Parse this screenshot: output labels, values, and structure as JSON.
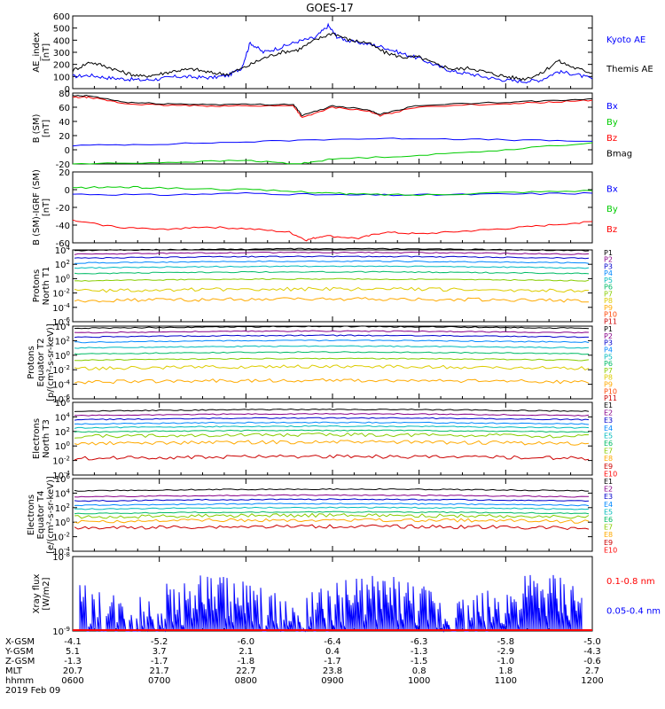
{
  "title": "GOES-17",
  "chart_data": [
    {
      "type": "line",
      "panel": "ae",
      "ylabel": [
        "AE_index",
        "[nT]"
      ],
      "ylim": [
        0,
        600
      ],
      "yticks": [
        "600",
        "500",
        "400",
        "300",
        "200",
        "100",
        "0"
      ],
      "series": [
        {
          "name": "Kyoto AE",
          "color": "#0000ff",
          "x": [
            6.0,
            6.2,
            6.4,
            6.6,
            6.8,
            7.0,
            7.2,
            7.4,
            7.6,
            7.8,
            7.95,
            8.05,
            8.2,
            8.4,
            8.6,
            8.8,
            8.95,
            9.05,
            9.2,
            9.4,
            9.6,
            9.8,
            10.0,
            10.2,
            10.4,
            10.6,
            10.8,
            11.0,
            11.2,
            11.4,
            11.6,
            11.8,
            12.0
          ],
          "y": [
            100,
            110,
            90,
            80,
            70,
            80,
            100,
            95,
            90,
            110,
            170,
            380,
            300,
            340,
            390,
            420,
            520,
            430,
            390,
            370,
            340,
            290,
            250,
            190,
            140,
            120,
            90,
            70,
            60,
            70,
            140,
            120,
            80
          ]
        },
        {
          "name": "Themis AE",
          "color": "#000000",
          "x": [
            6.0,
            6.2,
            6.4,
            6.6,
            6.8,
            7.0,
            7.2,
            7.4,
            7.6,
            7.8,
            8.0,
            8.2,
            8.4,
            8.6,
            8.8,
            9.0,
            9.2,
            9.4,
            9.6,
            9.8,
            10.0,
            10.2,
            10.4,
            10.6,
            10.8,
            11.0,
            11.2,
            11.4,
            11.6,
            11.8,
            12.0
          ],
          "y": [
            150,
            220,
            180,
            130,
            100,
            120,
            150,
            160,
            130,
            120,
            180,
            250,
            300,
            320,
            400,
            460,
            400,
            380,
            300,
            260,
            260,
            200,
            160,
            170,
            130,
            100,
            80,
            120,
            230,
            170,
            130
          ]
        }
      ]
    },
    {
      "type": "line",
      "panel": "bsm",
      "ylabel": [
        "B (SM)",
        "[nT]"
      ],
      "ylim": [
        -20,
        80
      ],
      "yticks": [
        "80",
        "60",
        "40",
        "20",
        "0",
        "-20"
      ],
      "series": [
        {
          "name": "Bx",
          "color": "#0000ff",
          "x": [
            6,
            7,
            8,
            9,
            10,
            11,
            12
          ],
          "y": [
            6,
            8,
            11,
            15,
            16,
            14,
            12
          ]
        },
        {
          "name": "By",
          "color": "#00cc00",
          "x": [
            6,
            7,
            8,
            8.6,
            9,
            10,
            11,
            12
          ],
          "y": [
            -20,
            -18,
            -15,
            -20,
            -13,
            -8,
            0,
            10
          ]
        },
        {
          "name": "Bz",
          "color": "#ff0000",
          "x": [
            6,
            6.2,
            6.6,
            7,
            7.5,
            8,
            8.55,
            8.65,
            9,
            9.4,
            9.55,
            10,
            11,
            11.5,
            12
          ],
          "y": [
            74,
            74,
            65,
            63,
            62,
            62,
            62,
            45,
            60,
            55,
            48,
            61,
            65,
            67,
            70
          ]
        },
        {
          "name": "Bmag",
          "color": "#000000",
          "x": [
            6,
            6.2,
            6.6,
            7,
            7.5,
            8,
            8.55,
            8.65,
            9,
            9.4,
            9.55,
            10,
            11,
            11.5,
            12
          ],
          "y": [
            76,
            76,
            67,
            65,
            64,
            64,
            64,
            48,
            62,
            57,
            50,
            63,
            67,
            69,
            72
          ]
        }
      ]
    },
    {
      "type": "line",
      "panel": "bigrf",
      "ylabel": [
        "B (SM)-IGRF (SM)",
        "[nT]"
      ],
      "ylim": [
        -60,
        20
      ],
      "yticks": [
        "20",
        "0",
        "-20",
        "-40",
        "-60"
      ],
      "series": [
        {
          "name": "Bx",
          "color": "#0000ff",
          "x": [
            6,
            7,
            8,
            9,
            10,
            11,
            12
          ],
          "y": [
            -5,
            -6,
            -4,
            -6,
            -6,
            -5,
            -4
          ]
        },
        {
          "name": "By",
          "color": "#00cc00",
          "x": [
            6,
            6.5,
            7,
            8,
            8.8,
            9.2,
            10,
            11,
            12
          ],
          "y": [
            2,
            3,
            2,
            0,
            -3,
            -5,
            -6,
            -3,
            -1
          ]
        },
        {
          "name": "Bz",
          "color": "#ff0000",
          "x": [
            6,
            6.5,
            7,
            7.5,
            8,
            8.5,
            8.7,
            8.9,
            9.3,
            9.6,
            10,
            10.5,
            11,
            11.5,
            12
          ],
          "y": [
            -35,
            -42,
            -45,
            -42,
            -44,
            -48,
            -57,
            -52,
            -55,
            -48,
            -50,
            -47,
            -44,
            -40,
            -36
          ]
        }
      ]
    },
    {
      "type": "line",
      "panel": "p1",
      "ylabel": [
        "Protons",
        "North T1"
      ],
      "yscale": "log",
      "ylim": [
        1e-06,
        10000.0
      ],
      "yticks": [
        "10^4",
        "10^2",
        "10^0",
        "10^-2",
        "10^-4",
        "10^-6"
      ],
      "series": [
        {
          "name": "P1",
          "color": "#000000",
          "y": 8000
        },
        {
          "name": "P2",
          "color": "#880088",
          "y": 2500
        },
        {
          "name": "P3",
          "color": "#0000cc",
          "y": 700
        },
        {
          "name": "P4",
          "color": "#0088ff",
          "y": 150
        },
        {
          "name": "P5",
          "color": "#00bbbb",
          "y": 30
        },
        {
          "name": "P6",
          "color": "#00bb66",
          "y": 5
        },
        {
          "name": "P7",
          "color": "#88cc00",
          "y": 0.5
        },
        {
          "name": "P8",
          "color": "#ddcc00",
          "y": 0.02
        },
        {
          "name": "P9",
          "color": "#ffaa00",
          "y": 0.0008
        },
        {
          "name": "P10",
          "color": "#ff4400",
          "y": null
        },
        {
          "name": "P11",
          "color": "#cc0000",
          "y": null
        }
      ]
    },
    {
      "type": "line",
      "panel": "p2",
      "ylabel": [
        "Protons",
        "Equator T2",
        "[p/(cm²-s-sr-keV)]"
      ],
      "yscale": "log",
      "ylim": [
        1e-06,
        10000.0
      ],
      "yticks": [
        "10^4",
        "10^2",
        "10^0",
        "10^-2",
        "10^-4",
        "10^-6"
      ],
      "series": [
        {
          "name": "P1",
          "color": "#000000",
          "y": 5000
        },
        {
          "name": "P2",
          "color": "#880088",
          "y": 1200
        },
        {
          "name": "P3",
          "color": "#0000cc",
          "y": 300
        },
        {
          "name": "P4",
          "color": "#0088ff",
          "y": 60
        },
        {
          "name": "P5",
          "color": "#00bbbb",
          "y": 10
        },
        {
          "name": "P6",
          "color": "#00bb66",
          "y": 1.5
        },
        {
          "name": "P7",
          "color": "#88cc00",
          "y": 0.2
        },
        {
          "name": "P8",
          "color": "#ddcc00",
          "y": 0.015
        },
        {
          "name": "P9",
          "color": "#ffaa00",
          "y": 0.0002
        },
        {
          "name": "P10",
          "color": "#ff4400",
          "y": null
        },
        {
          "name": "P11",
          "color": "#cc0000",
          "y": null
        }
      ]
    },
    {
      "type": "line",
      "panel": "e1",
      "ylabel": [
        "Electrons",
        "North T3"
      ],
      "yscale": "log",
      "ylim": [
        0.0001,
        1000000.0
      ],
      "yticks": [
        "10^6",
        "10^4",
        "10^2",
        "10^0",
        "10^-2",
        "10^-4"
      ],
      "series": [
        {
          "name": "E1",
          "color": "#000000",
          "y": 60000
        },
        {
          "name": "E2",
          "color": "#880088",
          "y": 15000
        },
        {
          "name": "E3",
          "color": "#0000cc",
          "y": 4000
        },
        {
          "name": "E4",
          "color": "#0088ff",
          "y": 1000
        },
        {
          "name": "E5",
          "color": "#00bbbb",
          "y": 300
        },
        {
          "name": "E6",
          "color": "#00bb66",
          "y": 80
        },
        {
          "name": "E7",
          "color": "#88cc00",
          "y": 20
        },
        {
          "name": "E8",
          "color": "#ffaa00",
          "y": 2
        },
        {
          "name": "E9",
          "color": "#cc0000",
          "y": 0.02
        },
        {
          "name": "E10",
          "color": "#ff0000",
          "y": null
        }
      ]
    },
    {
      "type": "line",
      "panel": "e2",
      "ylabel": [
        "Electrons",
        "Equator T4",
        "[e/(cm²-s-sr-keV)]"
      ],
      "yscale": "log",
      "ylim": [
        0.0001,
        1000000.0
      ],
      "yticks": [
        "10^6",
        "10^4",
        "10^2",
        "10^0",
        "10^-2",
        "10^-4"
      ],
      "series": [
        {
          "name": "E1",
          "color": "#000000",
          "y": 20000
        },
        {
          "name": "E2",
          "color": "#880088",
          "y": 3000
        },
        {
          "name": "E3",
          "color": "#0000cc",
          "y": 800
        },
        {
          "name": "E4",
          "color": "#0088ff",
          "y": 200
        },
        {
          "name": "E5",
          "color": "#00bbbb",
          "y": 60
        },
        {
          "name": "E6",
          "color": "#00bb66",
          "y": 15
        },
        {
          "name": "E7",
          "color": "#88cc00",
          "y": 5
        },
        {
          "name": "E8",
          "color": "#ffaa00",
          "y": 1.2
        },
        {
          "name": "E9",
          "color": "#cc0000",
          "y": 0.15
        },
        {
          "name": "E10",
          "color": "#ff0000",
          "y": null
        }
      ]
    },
    {
      "type": "line",
      "panel": "xray",
      "ylabel": [
        "Xray flux",
        "[W/m2]"
      ],
      "yscale": "log",
      "ylim": [
        1e-09,
        1e-08
      ],
      "yticks": [
        "10^-8",
        "10^-9"
      ],
      "series": [
        {
          "name": "0.1-0.8 nm",
          "color": "#ff0000",
          "y": null
        },
        {
          "name": "0.05-0.4 nm",
          "color": "#0000ff",
          "y": null
        }
      ]
    }
  ],
  "x_axis": {
    "xlim": [
      6,
      12
    ],
    "tick_times": [
      "0600",
      "0700",
      "0800",
      "0900",
      "1000",
      "1100",
      "1200"
    ],
    "rows": [
      {
        "label": "X-GSM",
        "values": [
          "-4.1",
          "-5.2",
          "-6.0",
          "-6.4",
          "-6.3",
          "-5.8",
          "-5.0"
        ]
      },
      {
        "label": "Y-GSM",
        "values": [
          "5.1",
          "3.7",
          "2.1",
          "0.4",
          "-1.3",
          "-2.9",
          "-4.3"
        ]
      },
      {
        "label": "Z-GSM",
        "values": [
          "-1.3",
          "-1.7",
          "-1.8",
          "-1.7",
          "-1.5",
          "-1.0",
          "-0.6"
        ]
      },
      {
        "label": "MLT",
        "values": [
          "20.7",
          "21.7",
          "22.7",
          "23.8",
          "0.8",
          "1.8",
          "2.7"
        ]
      },
      {
        "label": "hhmm",
        "values": [
          "0600",
          "0700",
          "0800",
          "0900",
          "1000",
          "1100",
          "1200"
        ]
      }
    ],
    "date": "2019 Feb 09"
  }
}
